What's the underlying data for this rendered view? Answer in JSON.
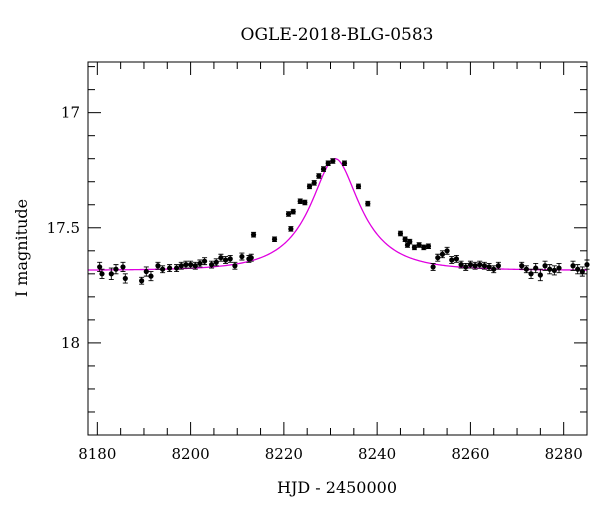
{
  "chart_data": {
    "type": "scatter",
    "title": "OGLE-2018-BLG-0583",
    "xlabel": "HJD - 2450000",
    "ylabel": "I magnitude",
    "xlim": [
      8178,
      8285
    ],
    "ylim": [
      18.4,
      16.78
    ],
    "y_inverted": true,
    "xticks": [
      8180,
      8200,
      8220,
      8240,
      8260,
      8280
    ],
    "yticks": [
      17,
      17.5,
      18
    ],
    "ytick_labels": [
      "17",
      "17.5",
      "18"
    ],
    "model_color": "#e000e0",
    "model": {
      "baseline": 17.685,
      "peak_mag": 17.2,
      "t0": 8231,
      "tE": 12.0,
      "u0": 0.45
    },
    "series": [
      {
        "points": [
          [
            8180.5,
            17.67,
            0.02
          ],
          [
            8181,
            17.7,
            0.02
          ],
          [
            8183,
            17.7,
            0.025
          ],
          [
            8184,
            17.68,
            0.02
          ],
          [
            8185.5,
            17.67,
            0.02
          ],
          [
            8186,
            17.72,
            0.02
          ],
          [
            8189.5,
            17.73,
            0.015
          ],
          [
            8190.5,
            17.69,
            0.02
          ],
          [
            8191.5,
            17.71,
            0.02
          ],
          [
            8193,
            17.665,
            0.015
          ],
          [
            8194,
            17.68,
            0.015
          ],
          [
            8195.5,
            17.675,
            0.015
          ],
          [
            8197,
            17.675,
            0.015
          ],
          [
            8198,
            17.665,
            0.015
          ],
          [
            8199,
            17.66,
            0.015
          ],
          [
            8200,
            17.66,
            0.015
          ],
          [
            8201,
            17.665,
            0.015
          ],
          [
            8202,
            17.655,
            0.015
          ],
          [
            8203,
            17.645,
            0.015
          ],
          [
            8204.5,
            17.66,
            0.015
          ],
          [
            8205.5,
            17.65,
            0.015
          ],
          [
            8206.5,
            17.63,
            0.015
          ],
          [
            8207.5,
            17.64,
            0.015
          ],
          [
            8208.5,
            17.635,
            0.015
          ],
          [
            8209.5,
            17.665,
            0.015
          ],
          [
            8211,
            17.625,
            0.015
          ],
          [
            8212.5,
            17.635,
            0.015
          ],
          [
            8213,
            17.63,
            0.015
          ],
          [
            8213.5,
            17.53,
            0.01
          ],
          [
            8218,
            17.55,
            0.01
          ],
          [
            8221,
            17.44,
            0.01
          ],
          [
            8221.5,
            17.505,
            0.01
          ],
          [
            8222,
            17.43,
            0.01
          ],
          [
            8223.5,
            17.385,
            0.01
          ],
          [
            8224.5,
            17.39,
            0.01
          ],
          [
            8225.5,
            17.32,
            0.01
          ],
          [
            8226.5,
            17.305,
            0.01
          ],
          [
            8227.5,
            17.275,
            0.01
          ],
          [
            8228.5,
            17.245,
            0.01
          ],
          [
            8229.5,
            17.22,
            0.01
          ],
          [
            8230.5,
            17.21,
            0.01
          ],
          [
            8233,
            17.22,
            0.01
          ],
          [
            8236,
            17.32,
            0.01
          ],
          [
            8238,
            17.395,
            0.01
          ],
          [
            8245,
            17.525,
            0.01
          ],
          [
            8246,
            17.55,
            0.01
          ],
          [
            8246.5,
            17.575,
            0.01
          ],
          [
            8247,
            17.56,
            0.01
          ],
          [
            8248,
            17.585,
            0.01
          ],
          [
            8249,
            17.575,
            0.01
          ],
          [
            8250,
            17.585,
            0.01
          ],
          [
            8251,
            17.58,
            0.01
          ],
          [
            8252,
            17.67,
            0.015
          ],
          [
            8253,
            17.63,
            0.015
          ],
          [
            8254,
            17.615,
            0.015
          ],
          [
            8255,
            17.6,
            0.015
          ],
          [
            8256,
            17.64,
            0.015
          ],
          [
            8257,
            17.635,
            0.015
          ],
          [
            8258,
            17.66,
            0.015
          ],
          [
            8259,
            17.67,
            0.015
          ],
          [
            8260,
            17.66,
            0.015
          ],
          [
            8261,
            17.665,
            0.015
          ],
          [
            8262,
            17.66,
            0.015
          ],
          [
            8263,
            17.665,
            0.015
          ],
          [
            8264,
            17.67,
            0.015
          ],
          [
            8265,
            17.68,
            0.015
          ],
          [
            8266,
            17.665,
            0.015
          ],
          [
            8271,
            17.665,
            0.015
          ],
          [
            8272,
            17.68,
            0.015
          ],
          [
            8273,
            17.7,
            0.02
          ],
          [
            8274,
            17.675,
            0.02
          ],
          [
            8275,
            17.705,
            0.025
          ],
          [
            8276,
            17.665,
            0.02
          ],
          [
            8277,
            17.68,
            0.02
          ],
          [
            8278,
            17.685,
            0.02
          ],
          [
            8279,
            17.675,
            0.02
          ],
          [
            8282,
            17.665,
            0.02
          ],
          [
            8283,
            17.68,
            0.02
          ],
          [
            8284,
            17.69,
            0.02
          ],
          [
            8285,
            17.66,
            0.02
          ]
        ]
      }
    ]
  }
}
